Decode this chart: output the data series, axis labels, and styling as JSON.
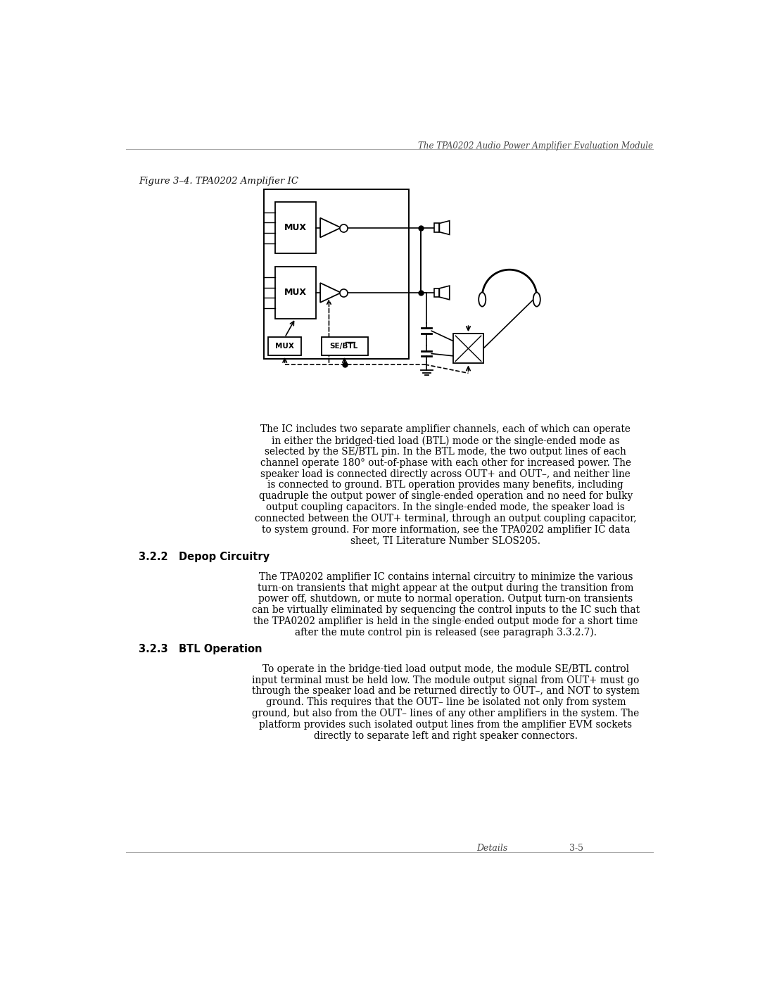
{
  "page_header": "The TPA0202 Audio Power Amplifier Evaluation Module",
  "page_footer_left": "Details",
  "page_footer_right": "3-5",
  "figure_label": "Figure 3–4. TPA0202 Amplifier IC",
  "section_title_1": "3.2.2   Depop Circuitry",
  "section_title_2": "3.2.3   BTL Operation",
  "body_text_1": [
    "The IC includes two separate amplifier channels, each of which can operate",
    "in either the bridged-tied load (BTL) mode or the single-ended mode as",
    "selected by the SE/BTL pin. In the BTL mode, the two output lines of each",
    "channel operate 180° out-of-phase with each other for increased power. The",
    "speaker load is connected directly across OUT+ and OUT–, and neither line",
    "is connected to ground. BTL operation provides many benefits, including",
    "quadruple the output power of single-ended operation and no need for bulky",
    "output coupling capacitors. In the single-ended mode, the speaker load is",
    "connected between the OUT+ terminal, through an output coupling capacitor,",
    "to system ground. For more information, see the TPA0202 amplifier IC data",
    "sheet, TI Literature Number SLOS205."
  ],
  "body_text_2": [
    "The TPA0202 amplifier IC contains internal circuitry to minimize the various",
    "turn-on transients that might appear at the output during the transition from",
    "power off, shutdown, or mute to normal operation. Output turn-on transients",
    "can be virtually eliminated by sequencing the control inputs to the IC such that",
    "the TPA0202 amplifier is held in the single-ended output mode for a short time",
    "after the mute control pin is released (see paragraph 3.3.2.7)."
  ],
  "body_text_3_part1": "To operate in the bridge-tied load output mode, the module SE/BTL control",
  "body_text_3_part2": [
    "input terminal must be held low. The module output signal from OUT+ must go",
    "through the speaker load and be returned directly to OUT–, and ",
    "to system",
    "ground. This requires that the OUT– line be isolated not only from system",
    "ground, but also from the OUT– lines of any other amplifiers in the system. The",
    "platform provides such isolated output lines from the amplifier EVM sockets",
    "directly to separate left and right speaker connectors."
  ],
  "bg_color": "#ffffff",
  "text_color": "#000000"
}
